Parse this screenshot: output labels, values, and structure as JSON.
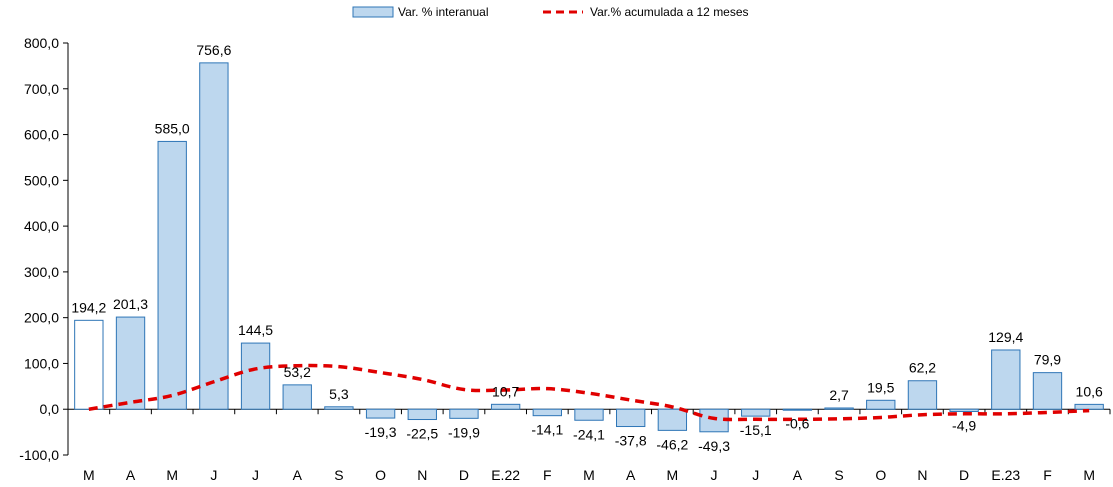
{
  "chart_data": {
    "type": "bar",
    "categories": [
      "M",
      "A",
      "M",
      "J",
      "J",
      "A",
      "S",
      "O",
      "N",
      "D",
      "E.22",
      "F",
      "M",
      "A",
      "M",
      "J",
      "J",
      "A",
      "S",
      "O",
      "N",
      "D",
      "E.23",
      "F",
      "M"
    ],
    "series": [
      {
        "name": "Var. % interanual",
        "type": "bar",
        "values": [
          194.2,
          201.3,
          585.0,
          756.6,
          144.5,
          53.2,
          5.3,
          -19.3,
          -22.5,
          -19.9,
          10.7,
          -14.1,
          -24.1,
          -37.8,
          -46.2,
          -49.3,
          -15.1,
          -0.6,
          2.7,
          19.5,
          62.2,
          -4.9,
          129.4,
          79.9,
          10.6
        ],
        "labels": [
          "194,2",
          "201,3",
          "585,0",
          "756,6",
          "144,5",
          "53,2",
          "5,3",
          "-19,3",
          "-22,5",
          "-19,9",
          "10,7",
          "-14,1",
          "-24,1",
          "-37,8",
          "-46,2",
          "-49,3",
          "-15,1",
          "-0,6",
          "2,7",
          "19,5",
          "62,2",
          "-4,9",
          "129,4",
          "79,9",
          "10,6"
        ]
      },
      {
        "name": "Var.% acumulada a 12 meses",
        "type": "line",
        "values": [
          0,
          15,
          30,
          60,
          88,
          95,
          93,
          80,
          65,
          43,
          42,
          45,
          35,
          20,
          5,
          -20,
          -22,
          -22,
          -21,
          -18,
          -12,
          -10,
          -10,
          -7,
          -3
        ]
      }
    ],
    "yticks": [
      "800,0",
      "700,0",
      "600,0",
      "500,0",
      "400,0",
      "300,0",
      "200,0",
      "100,0",
      "0,0",
      "-100,0"
    ],
    "ylim": [
      -100,
      800
    ],
    "legend_position": "top-center",
    "colors": {
      "bar_fill": "#bdd7ee",
      "bar_stroke": "#2e75b6",
      "first_bar_fill": "#ffffff",
      "line": "#e00000",
      "axis": "#000000"
    }
  }
}
